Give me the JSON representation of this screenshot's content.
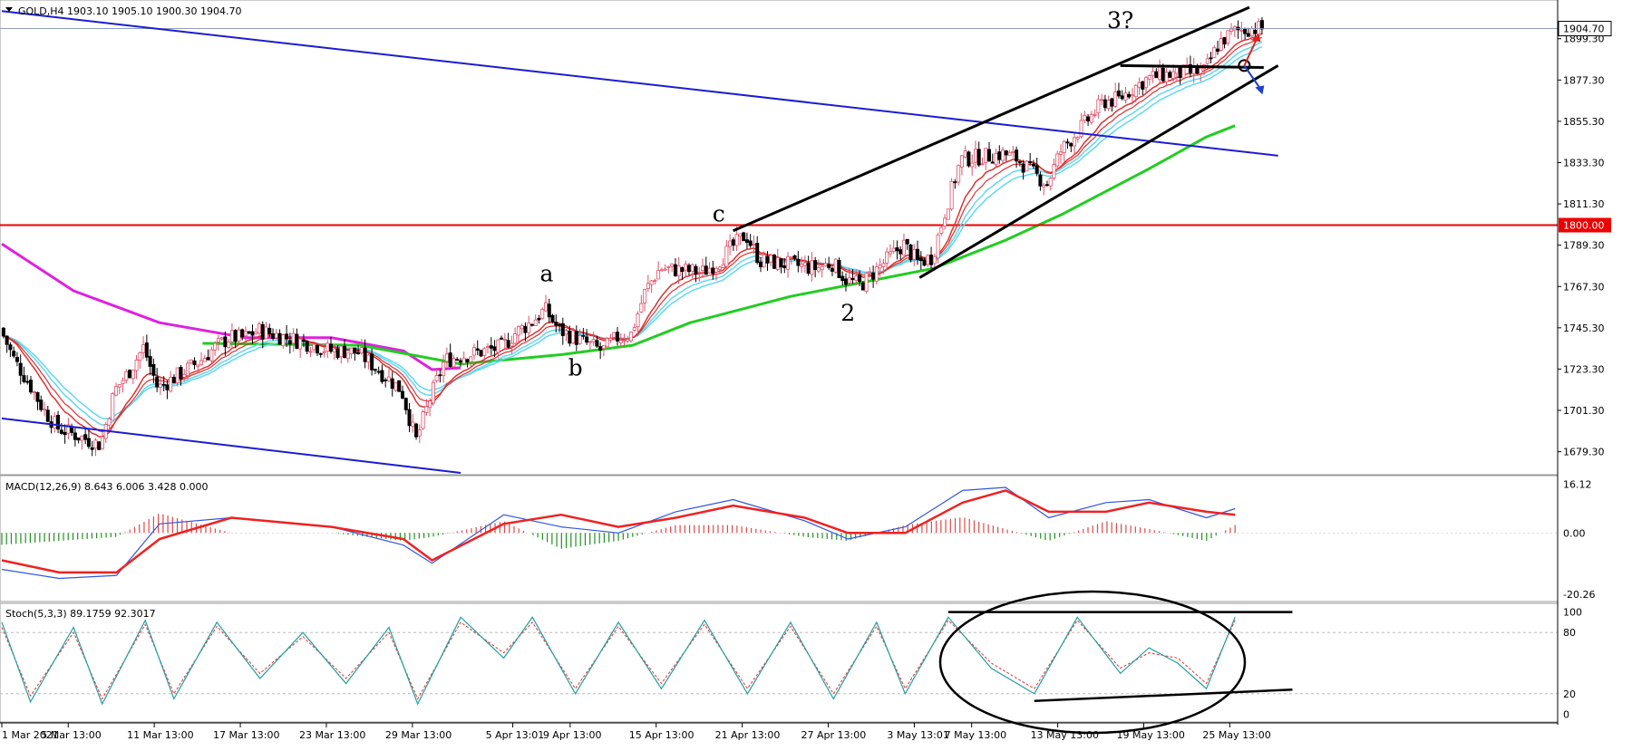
{
  "colors": {
    "background": "#ffffff",
    "bull_candle": "#e0506a",
    "bear_candle": "#000000",
    "ema_fast": "#e03030",
    "ema_slow": "#60d8f0",
    "ma_green": "#22cc22",
    "ma_magenta": "#dd22dd",
    "channel_blue": "#1c1cd0",
    "level_red": "#ee0000",
    "macd_signal": "#ee2222",
    "macd_line": "#3355dd",
    "hist_pos": "#e04848",
    "hist_neg": "#209020",
    "stoch_main": "#20a0a0",
    "stoch_signal": "#ee3030"
  },
  "chart_data": [
    {
      "id": "price",
      "type": "candlestick",
      "title": "GOLD,H4  1903.10 1905.10 1900.30 1904.70",
      "symbol": "GOLD",
      "timeframe": "H4",
      "ohlc": {
        "open": 1903.1,
        "high": 1905.1,
        "low": 1900.3,
        "close": 1904.7
      },
      "current_price_label": "1904.70",
      "x": {
        "start": "2021-03-01",
        "end": "2021-05-27"
      },
      "ylim": [
        1668,
        1918
      ],
      "y_ticks": [
        1899.3,
        1877.3,
        1855.3,
        1833.3,
        1811.3,
        1789.3,
        1767.3,
        1745.3,
        1723.3,
        1701.3,
        1679.3
      ],
      "x_ticks": [
        "1 Mar 2021",
        "5 Mar 13:00",
        "11 Mar 13:00",
        "17 Mar 13:00",
        "23 Mar 13:00",
        "29 Mar 13:00",
        "5 Apr 13:01",
        "9 Apr 13:00",
        "15 Apr 13:00",
        "21 Apr 13:00",
        "27 Apr 13:00",
        "3 May 13:01",
        "7 May 13:00",
        "13 May 13:00",
        "19 May 13:00",
        "25 May 13:00"
      ],
      "close_path": [
        [
          "2021-03-01",
          1745
        ],
        [
          "2021-03-02",
          1728
        ],
        [
          "2021-03-03",
          1716
        ],
        [
          "2021-03-04",
          1702
        ],
        [
          "2021-03-05",
          1692
        ],
        [
          "2021-03-08",
          1683
        ],
        [
          "2021-03-09",
          1712
        ],
        [
          "2021-03-10",
          1722
        ],
        [
          "2021-03-11",
          1735
        ],
        [
          "2021-03-12",
          1713
        ],
        [
          "2021-03-15",
          1728
        ],
        [
          "2021-03-16",
          1735
        ],
        [
          "2021-03-17",
          1740
        ],
        [
          "2021-03-18",
          1740
        ],
        [
          "2021-03-19",
          1744
        ],
        [
          "2021-03-22",
          1738
        ],
        [
          "2021-03-23",
          1736
        ],
        [
          "2021-03-24",
          1733
        ],
        [
          "2021-03-25",
          1733
        ],
        [
          "2021-03-26",
          1732
        ],
        [
          "2021-03-29",
          1712
        ],
        [
          "2021-03-30",
          1685
        ],
        [
          "2021-03-31",
          1708
        ],
        [
          "2021-04-01",
          1728
        ],
        [
          "2021-04-02",
          1730
        ],
        [
          "2021-04-05",
          1735
        ],
        [
          "2021-04-06",
          1743
        ],
        [
          "2021-04-07",
          1748
        ],
        [
          "2021-04-08",
          1755
        ],
        [
          "2021-04-09",
          1744
        ],
        [
          "2021-04-12",
          1733
        ],
        [
          "2021-04-13",
          1740
        ],
        [
          "2021-04-14",
          1742
        ],
        [
          "2021-04-15",
          1765
        ],
        [
          "2021-04-16",
          1777
        ],
        [
          "2021-04-19",
          1775
        ],
        [
          "2021-04-20",
          1780
        ],
        [
          "2021-04-21",
          1788
        ],
        [
          "2021-04-22",
          1795
        ],
        [
          "2021-04-23",
          1781
        ],
        [
          "2021-04-26",
          1778
        ],
        [
          "2021-04-27",
          1777
        ],
        [
          "2021-04-28",
          1780
        ],
        [
          "2021-04-29",
          1771
        ],
        [
          "2021-04-30",
          1768
        ],
        [
          "2021-05-03",
          1790
        ],
        [
          "2021-05-04",
          1780
        ],
        [
          "2021-05-05",
          1783
        ],
        [
          "2021-05-06",
          1810
        ],
        [
          "2021-05-07",
          1835
        ],
        [
          "2021-05-10",
          1838
        ],
        [
          "2021-05-11",
          1835
        ],
        [
          "2021-05-12",
          1828
        ],
        [
          "2021-05-13",
          1822
        ],
        [
          "2021-05-14",
          1840
        ],
        [
          "2021-05-17",
          1866
        ],
        [
          "2021-05-18",
          1867
        ],
        [
          "2021-05-19",
          1873
        ],
        [
          "2021-05-20",
          1878
        ],
        [
          "2021-05-21",
          1880
        ],
        [
          "2021-05-24",
          1882
        ],
        [
          "2021-05-25",
          1897
        ],
        [
          "2021-05-26",
          1903
        ],
        [
          "2021-05-27",
          1904.7
        ]
      ],
      "moving_averages": [
        {
          "color_key": "ma_magenta",
          "points": [
            [
              "2021-03-01",
              1790
            ],
            [
              "2021-03-06",
              1765
            ],
            [
              "2021-03-12",
              1748
            ],
            [
              "2021-03-18",
              1740
            ],
            [
              "2021-03-24",
              1740
            ],
            [
              "2021-03-29",
              1733
            ],
            [
              "2021-03-31",
              1723
            ],
            [
              "2021-04-02",
              1724
            ]
          ]
        },
        {
          "color_key": "ma_green",
          "points": [
            [
              "2021-03-15",
              1737
            ],
            [
              "2021-03-26",
              1736
            ],
            [
              "2021-04-02",
              1726
            ],
            [
              "2021-04-09",
              1731
            ],
            [
              "2021-04-14",
              1736
            ],
            [
              "2021-04-18",
              1748
            ],
            [
              "2021-04-25",
              1762
            ],
            [
              "2021-05-01",
              1771
            ],
            [
              "2021-05-05",
              1777
            ],
            [
              "2021-05-10",
              1792
            ],
            [
              "2021-05-14",
              1806
            ],
            [
              "2021-05-20",
              1830
            ],
            [
              "2021-05-24",
              1847
            ],
            [
              "2021-05-26",
              1853
            ]
          ]
        }
      ],
      "levels": [
        {
          "value": 1800.0,
          "label": "1800.00",
          "color_key": "level_red"
        }
      ],
      "trendlines": [
        {
          "color_key": "channel_blue",
          "from": [
            "2021-03-01",
            1914
          ],
          "to": [
            "2021-05-29",
            1837
          ]
        },
        {
          "color_key": "channel_blue",
          "from": [
            "2021-03-01",
            1697
          ],
          "to": [
            "2021-04-02",
            1668
          ]
        },
        {
          "color_key": "bear_candle",
          "from": [
            "2021-04-21",
            1797
          ],
          "to": [
            "2021-05-27",
            1916
          ]
        },
        {
          "color_key": "bear_candle",
          "from": [
            "2021-05-04",
            1772
          ],
          "to": [
            "2021-05-29",
            1885
          ]
        },
        {
          "color_key": "bear_candle",
          "from": [
            "2021-05-18",
            1885
          ],
          "to": [
            "2021-05-28",
            1884
          ]
        }
      ],
      "annotations": [
        {
          "text": "a",
          "at": [
            "2021-04-08",
            1770
          ]
        },
        {
          "text": "b",
          "at": [
            "2021-04-10",
            1720
          ]
        },
        {
          "text": "c",
          "at": [
            "2021-04-20",
            1802
          ]
        },
        {
          "text": "2",
          "at": [
            "2021-04-29",
            1749
          ]
        },
        {
          "text": "3?",
          "at": [
            "2021-05-18",
            1905
          ]
        }
      ]
    },
    {
      "id": "macd",
      "type": "line",
      "title": "MACD(12,26,9) 8.643 6.006 3.428 0.000",
      "ylim": [
        -22,
        18
      ],
      "y_ticks": [
        16.12,
        0.0,
        -20.26
      ],
      "series": [
        {
          "name": "MACD(12,26,9)",
          "color_key": "macd_line",
          "points": [
            [
              "2021-03-01",
              -12
            ],
            [
              "2021-03-05",
              -15
            ],
            [
              "2021-03-09",
              -14
            ],
            [
              "2021-03-12",
              3
            ],
            [
              "2021-03-17",
              5
            ],
            [
              "2021-03-24",
              2
            ],
            [
              "2021-03-29",
              -4
            ],
            [
              "2021-03-31",
              -10
            ],
            [
              "2021-04-05",
              6
            ],
            [
              "2021-04-09",
              2
            ],
            [
              "2021-04-13",
              0
            ],
            [
              "2021-04-17",
              7
            ],
            [
              "2021-04-21",
              11
            ],
            [
              "2021-04-26",
              4
            ],
            [
              "2021-04-29",
              -2
            ],
            [
              "2021-05-03",
              2
            ],
            [
              "2021-05-07",
              14
            ],
            [
              "2021-05-10",
              15
            ],
            [
              "2021-05-13",
              5
            ],
            [
              "2021-05-17",
              10
            ],
            [
              "2021-05-20",
              11
            ],
            [
              "2021-05-24",
              5
            ],
            [
              "2021-05-26",
              8
            ]
          ]
        },
        {
          "name": "Signal",
          "color_key": "macd_signal",
          "points": [
            [
              "2021-03-01",
              -9
            ],
            [
              "2021-03-05",
              -13
            ],
            [
              "2021-03-09",
              -13
            ],
            [
              "2021-03-12",
              -2
            ],
            [
              "2021-03-17",
              5
            ],
            [
              "2021-03-24",
              2
            ],
            [
              "2021-03-29",
              -2
            ],
            [
              "2021-03-31",
              -9
            ],
            [
              "2021-04-05",
              3
            ],
            [
              "2021-04-09",
              6
            ],
            [
              "2021-04-13",
              2
            ],
            [
              "2021-04-17",
              5
            ],
            [
              "2021-04-21",
              9
            ],
            [
              "2021-04-26",
              5
            ],
            [
              "2021-04-29",
              0
            ],
            [
              "2021-05-03",
              0
            ],
            [
              "2021-05-07",
              10
            ],
            [
              "2021-05-10",
              14
            ],
            [
              "2021-05-13",
              7
            ],
            [
              "2021-05-17",
              7
            ],
            [
              "2021-05-20",
              10
            ],
            [
              "2021-05-24",
              7
            ],
            [
              "2021-05-26",
              6
            ]
          ]
        }
      ]
    },
    {
      "id": "stoch",
      "type": "line",
      "title": "Stoch(5,3,3) 89.1759 92.3017",
      "ylim": [
        -5,
        105
      ],
      "y_ticks": [
        100,
        80,
        20,
        0
      ],
      "series": [
        {
          "name": "Stoch(5,3,3)",
          "color_key": "stoch_main",
          "points": [
            [
              "2021-03-01",
              90
            ],
            [
              "2021-03-03",
              12
            ],
            [
              "2021-03-06",
              85
            ],
            [
              "2021-03-08",
              10
            ],
            [
              "2021-03-11",
              92
            ],
            [
              "2021-03-13",
              15
            ],
            [
              "2021-03-16",
              90
            ],
            [
              "2021-03-19",
              35
            ],
            [
              "2021-03-22",
              80
            ],
            [
              "2021-03-25",
              30
            ],
            [
              "2021-03-28",
              85
            ],
            [
              "2021-03-30",
              10
            ],
            [
              "2021-04-02",
              95
            ],
            [
              "2021-04-05",
              55
            ],
            [
              "2021-04-07",
              95
            ],
            [
              "2021-04-10",
              20
            ],
            [
              "2021-04-13",
              90
            ],
            [
              "2021-04-16",
              25
            ],
            [
              "2021-04-19",
              92
            ],
            [
              "2021-04-22",
              20
            ],
            [
              "2021-04-25",
              90
            ],
            [
              "2021-04-28",
              15
            ],
            [
              "2021-05-01",
              90
            ],
            [
              "2021-05-03",
              20
            ],
            [
              "2021-05-06",
              95
            ],
            [
              "2021-05-09",
              45
            ],
            [
              "2021-05-12",
              20
            ],
            [
              "2021-05-15",
              95
            ],
            [
              "2021-05-18",
              40
            ],
            [
              "2021-05-20",
              65
            ],
            [
              "2021-05-22",
              50
            ],
            [
              "2021-05-24",
              25
            ],
            [
              "2021-05-26",
              95
            ]
          ]
        },
        {
          "name": "Signal",
          "color_key": "stoch_signal",
          "points": [
            [
              "2021-03-01",
              85
            ],
            [
              "2021-03-03",
              18
            ],
            [
              "2021-03-06",
              80
            ],
            [
              "2021-03-08",
              15
            ],
            [
              "2021-03-11",
              88
            ],
            [
              "2021-03-13",
              20
            ],
            [
              "2021-03-16",
              86
            ],
            [
              "2021-03-19",
              40
            ],
            [
              "2021-03-22",
              76
            ],
            [
              "2021-03-25",
              35
            ],
            [
              "2021-03-28",
              80
            ],
            [
              "2021-03-30",
              15
            ],
            [
              "2021-04-02",
              90
            ],
            [
              "2021-04-05",
              60
            ],
            [
              "2021-04-07",
              90
            ],
            [
              "2021-04-10",
              25
            ],
            [
              "2021-04-13",
              86
            ],
            [
              "2021-04-16",
              30
            ],
            [
              "2021-04-19",
              88
            ],
            [
              "2021-04-22",
              25
            ],
            [
              "2021-04-25",
              86
            ],
            [
              "2021-04-28",
              20
            ],
            [
              "2021-05-01",
              86
            ],
            [
              "2021-05-03",
              25
            ],
            [
              "2021-05-06",
              92
            ],
            [
              "2021-05-09",
              50
            ],
            [
              "2021-05-12",
              25
            ],
            [
              "2021-05-15",
              92
            ],
            [
              "2021-05-18",
              45
            ],
            [
              "2021-05-20",
              60
            ],
            [
              "2021-05-22",
              55
            ],
            [
              "2021-05-24",
              30
            ],
            [
              "2021-05-26",
              92
            ]
          ]
        }
      ],
      "trendlines": [
        {
          "color_key": "bear_candle",
          "from": [
            "2021-05-06",
            100
          ],
          "to": [
            "2021-05-30",
            100
          ]
        },
        {
          "color_key": "bear_candle",
          "from": [
            "2021-05-12",
            13
          ],
          "to": [
            "2021-05-30",
            24
          ]
        }
      ]
    }
  ]
}
